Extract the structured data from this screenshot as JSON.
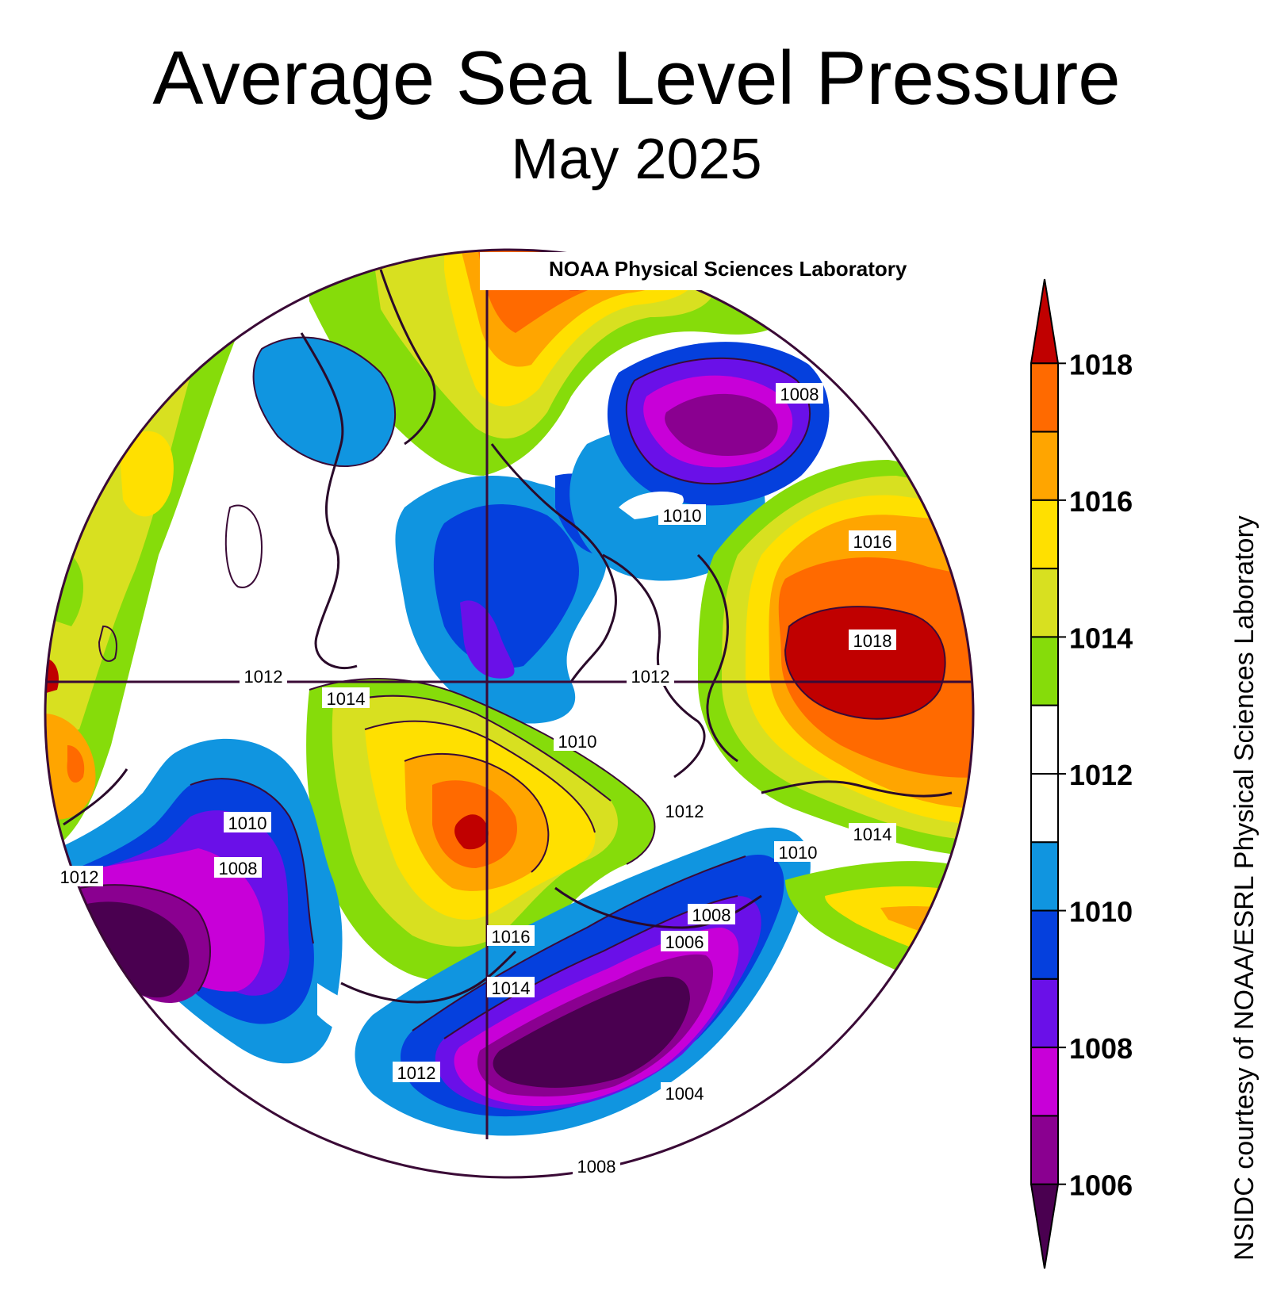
{
  "title": "Average Sea Level Pressure",
  "subtitle": "May 2025",
  "map_source": "NOAA Physical Sciences Laboratory",
  "credit": "NSIDC courtesy of NOAA/ESRL Physical Sciences Laboratory",
  "legend": {
    "tick_labels": [
      "1018",
      "1016",
      "1014",
      "1012",
      "1010",
      "1008",
      "1006"
    ],
    "bins": [
      {
        "range": "> 1018",
        "color": "#c00000"
      },
      {
        "range": "1017-1018",
        "color": "#ff6a00"
      },
      {
        "range": "1016-1017",
        "color": "#ffa500"
      },
      {
        "range": "1015-1016",
        "color": "#ffe000"
      },
      {
        "range": "1014-1015",
        "color": "#d8e020"
      },
      {
        "range": "1013-1014",
        "color": "#86dc0a"
      },
      {
        "range": "1012-1013",
        "color": "#ffffff"
      },
      {
        "range": "1011-1012",
        "color": "#ffffff"
      },
      {
        "range": "1010-1011",
        "color": "#1095e0"
      },
      {
        "range": "1009-1010",
        "color": "#0540dd"
      },
      {
        "range": "1008-1009",
        "color": "#6a10e8"
      },
      {
        "range": "1007-1008",
        "color": "#c800d8"
      },
      {
        "range": "1006-1007",
        "color": "#8a0090"
      },
      {
        "range": "< 1006",
        "color": "#4a0050"
      }
    ]
  },
  "contour_labels": [
    "1008",
    "1010",
    "1016",
    "1018",
    "1012",
    "1014",
    "1010",
    "1012",
    "1012",
    "1014",
    "1010",
    "1008",
    "1012",
    "1010",
    "1008",
    "1016",
    "1006",
    "1014",
    "1012",
    "1004",
    "1008"
  ],
  "pressure_systems": [
    {
      "name": "low-beaufort-baffin",
      "color": "#1095e0",
      "level": "1010"
    },
    {
      "name": "high-siberia-east",
      "color": "#c00000",
      "level": "1018"
    },
    {
      "name": "high-scandinavia-north",
      "color": "#ff6a00",
      "level": "1018"
    },
    {
      "name": "high-central-arctic",
      "color": "#c00000",
      "level": "1018"
    },
    {
      "name": "low-north-atlantic",
      "color": "#4a0050",
      "level": "1004"
    },
    {
      "name": "low-north-pacific",
      "color": "#4a0050",
      "level": "1006"
    },
    {
      "name": "low-barents-kara",
      "color": "#8a0090",
      "level": "1008"
    }
  ],
  "colors": {
    "boundary": "#3a0a36",
    "coastline": "#2a0a2a",
    "contour": "#3a0a36"
  }
}
